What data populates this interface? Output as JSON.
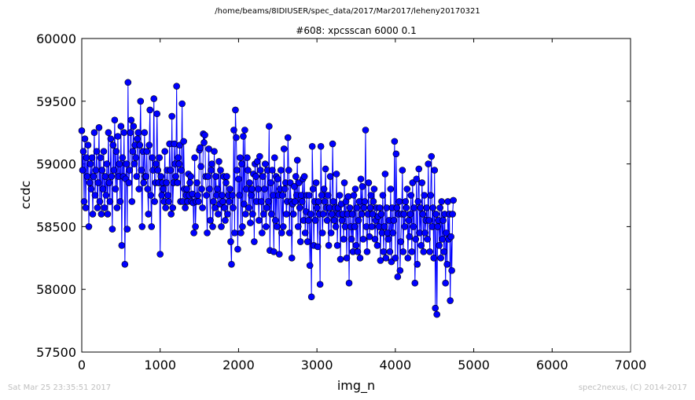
{
  "header": {
    "suptitle": "/home/beams/8IDIUSER/spec_data/2017/Mar2017/leheny20170321"
  },
  "footer": {
    "timestamp": "Sat Mar 25 23:35:51 2017",
    "credit": "spec2nexus, (C) 2014-2017"
  },
  "colors": {
    "series": "#0000ff",
    "axes": "#000000",
    "footer": "#bfbfbf"
  },
  "chart_data": {
    "type": "line",
    "title": "#608: xpcsscan 6000 0.1",
    "xlabel": "img_n",
    "ylabel": "ccdc",
    "xlim": [
      0,
      7000
    ],
    "ylim": [
      57500,
      60000
    ],
    "x_ticks": [
      "0",
      "1000",
      "2000",
      "3000",
      "4000",
      "5000",
      "6000",
      "7000"
    ],
    "y_ticks": [
      "57500",
      "58000",
      "58500",
      "59000",
      "59500",
      "60000"
    ],
    "markers": "circle",
    "grid": false,
    "legend": "none",
    "series": [
      {
        "x_start": 0,
        "x_step": 10,
        "values": [
          59265,
          58950,
          59100,
          58700,
          59200,
          58650,
          59050,
          58900,
          59150,
          58500,
          58850,
          59000,
          58800,
          59050,
          58600,
          58900,
          59250,
          58750,
          58950,
          59100,
          58650,
          58850,
          59290,
          58700,
          59050,
          58600,
          58950,
          58800,
          59100,
          58650,
          58900,
          58750,
          59000,
          58600,
          59250,
          58850,
          58700,
          59200,
          58900,
          58480,
          59150,
          58950,
          59350,
          58800,
          59100,
          58650,
          59220,
          58900,
          59000,
          58700,
          59300,
          58350,
          59050,
          58900,
          59250,
          58200,
          58880,
          59000,
          58480,
          59650,
          58850,
          58950,
          59250,
          59350,
          58700,
          59100,
          59300,
          59000,
          59150,
          59050,
          58900,
          59200,
          59250,
          58800,
          59150,
          59500,
          58950,
          58500,
          59100,
          58850,
          59250,
          58900,
          58900,
          59100,
          58800,
          58600,
          59150,
          59430,
          58750,
          58500,
          59050,
          58950,
          59520,
          58700,
          58850,
          59000,
          59400,
          58950,
          58850,
          59050,
          58280,
          58900,
          58750,
          58850,
          58800,
          58700,
          59100,
          58650,
          58850,
          58950,
          58750,
          58700,
          59160,
          58950,
          58600,
          59380,
          58650,
          58850,
          59160,
          59000,
          58900,
          59620,
          58850,
          59050,
          59000,
          59150,
          58700,
          58950,
          59480,
          58700,
          59180,
          58800,
          58650,
          58750,
          58800,
          58700,
          58920,
          58750,
          58850,
          58900,
          58700,
          58760,
          58690,
          58450,
          59050,
          58500,
          58700,
          58850,
          58750,
          58700,
          59110,
          59130,
          58980,
          58800,
          58650,
          59240,
          59170,
          59230,
          58900,
          58750,
          58450,
          58900,
          59120,
          58800,
          58550,
          58950,
          59000,
          58500,
          58700,
          59100,
          58650,
          58900,
          58750,
          58800,
          58600,
          59020,
          58680,
          58950,
          58500,
          58750,
          58700,
          58900,
          58650,
          58550,
          58850,
          58900,
          58600,
          58750,
          58700,
          58800,
          58380,
          58200,
          58750,
          58650,
          59270,
          58450,
          59430,
          59210,
          58950,
          58320,
          58880,
          58750,
          59050,
          58450,
          59000,
          58500,
          59220,
          58680,
          59270,
          58600,
          58800,
          59050,
          58950,
          58650,
          58850,
          58530,
          58750,
          58800,
          58600,
          58920,
          58380,
          59000,
          58900,
          58700,
          59020,
          58800,
          58550,
          59060,
          58950,
          58700,
          58450,
          58900,
          58600,
          58800,
          59000,
          58500,
          58650,
          58950,
          58700,
          59300,
          58310,
          58850,
          58600,
          58950,
          58750,
          58300,
          59050,
          58550,
          58900,
          58500,
          58880,
          58750,
          58280,
          58800,
          58950,
          58450,
          58750,
          58500,
          59120,
          58800,
          58850,
          58600,
          58700,
          59210,
          58950,
          58450,
          58850,
          58700,
          58250,
          58680,
          58600,
          58820,
          58700,
          58900,
          58750,
          59030,
          58500,
          58850,
          58650,
          58380,
          58750,
          58700,
          58880,
          58550,
          58900,
          58450,
          58620,
          58750,
          58380,
          58550,
          58750,
          58190,
          58600,
          57940,
          59140,
          58800,
          58350,
          58700,
          58550,
          58850,
          58650,
          58340,
          58700,
          58600,
          58040,
          59140,
          58750,
          58450,
          58600,
          58800,
          58700,
          58960,
          58650,
          58550,
          58750,
          58350,
          58650,
          58900,
          58450,
          58600,
          59160,
          58700,
          58550,
          58650,
          58500,
          58920,
          58350,
          58650,
          58600,
          58750,
          58240,
          58680,
          58550,
          58600,
          58400,
          58850,
          58500,
          58700,
          58250,
          58600,
          58740,
          58050,
          58650,
          58500,
          58400,
          58600,
          58300,
          58750,
          58500,
          58800,
          58350,
          58650,
          58300,
          58550,
          58700,
          58250,
          58880,
          58600,
          58820,
          58400,
          58650,
          58700,
          59270,
          58500,
          58300,
          58600,
          58850,
          58420,
          58650,
          58750,
          58500,
          58600,
          58700,
          58800,
          58400,
          58550,
          58650,
          58350,
          58580,
          58500,
          58650,
          58230,
          58600,
          58450,
          58750,
          58300,
          58500,
          58920,
          58250,
          58650,
          58450,
          58400,
          58550,
          58300,
          58800,
          58220,
          58650,
          58450,
          58550,
          59180,
          58250,
          59080,
          58650,
          58100,
          58600,
          58700,
          58150,
          58380,
          58600,
          58950,
          58300,
          58600,
          58500,
          58700,
          58650,
          58800,
          58250,
          58550,
          58420,
          58600,
          58750,
          58300,
          58850,
          58500,
          58650,
          58050,
          58400,
          58880,
          58200,
          58700,
          58960,
          58450,
          58650,
          58350,
          58850,
          58600,
          58300,
          58750,
          58450,
          58550,
          58650,
          58400,
          59000,
          58550,
          58300,
          58750,
          59060,
          58500,
          58650,
          58250,
          58950,
          57850,
          58600,
          57800,
          58500,
          58550,
          58350,
          58650,
          58250,
          58700,
          58400,
          58550,
          58300,
          58600,
          58050,
          58450,
          58200,
          58700,
          58400,
          58600,
          57910,
          58420,
          58150,
          58600,
          58710
        ]
      }
    ]
  }
}
